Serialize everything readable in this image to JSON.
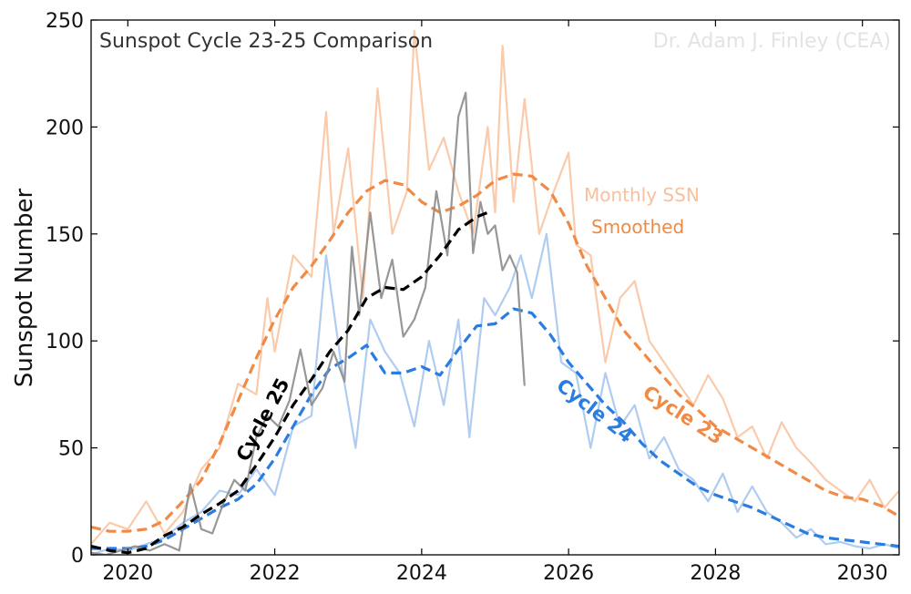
{
  "chart_data": {
    "type": "line",
    "title": "Sunspot Cycle 23-25 Comparison",
    "credit": "Dr. Adam J. Finley (CEA)",
    "xlabel": "",
    "ylabel": "Sunspot Number",
    "xlim": [
      2019.5,
      2030.5
    ],
    "ylim": [
      0,
      250
    ],
    "xticks": [
      2020,
      2022,
      2024,
      2026,
      2028,
      2030
    ],
    "yticks": [
      0,
      50,
      100,
      150,
      200,
      250
    ],
    "grid": false,
    "legend": {
      "monthly_label": "Monthly SSN",
      "smoothed_label": "Smoothed"
    },
    "series": [
      {
        "name": "Cycle 23 Monthly SSN",
        "cycle": 23,
        "kind": "monthly",
        "color": "#f9c4a2",
        "x": [
          2019.5,
          2019.75,
          2020.0,
          2020.25,
          2020.5,
          2020.75,
          2021.0,
          2021.25,
          2021.5,
          2021.75,
          2021.9,
          2022.0,
          2022.25,
          2022.5,
          2022.7,
          2022.8,
          2023.0,
          2023.2,
          2023.4,
          2023.6,
          2023.8,
          2023.9,
          2024.1,
          2024.3,
          2024.5,
          2024.7,
          2024.9,
          2025.0,
          2025.1,
          2025.25,
          2025.4,
          2025.6,
          2025.8,
          2026.0,
          2026.1,
          2026.3,
          2026.5,
          2026.7,
          2026.9,
          2027.1,
          2027.3,
          2027.5,
          2027.7,
          2027.9,
          2028.1,
          2028.3,
          2028.5,
          2028.7,
          2028.9,
          2029.1,
          2029.3,
          2029.5,
          2029.7,
          2029.9,
          2030.1,
          2030.3,
          2030.5
        ],
        "values": [
          5,
          15,
          12,
          25,
          10,
          20,
          40,
          50,
          80,
          75,
          120,
          95,
          140,
          130,
          207,
          150,
          190,
          120,
          218,
          150,
          170,
          245,
          180,
          195,
          170,
          150,
          200,
          160,
          238,
          165,
          213,
          150,
          170,
          188,
          145,
          140,
          90,
          120,
          128,
          100,
          90,
          80,
          70,
          84,
          73,
          55,
          60,
          45,
          62,
          50,
          43,
          35,
          30,
          25,
          35,
          22,
          30
        ]
      },
      {
        "name": "Cycle 23 Smoothed",
        "cycle": 23,
        "kind": "smoothed",
        "color": "#f08a45",
        "x": [
          2019.5,
          2019.75,
          2020.0,
          2020.25,
          2020.5,
          2020.75,
          2021.0,
          2021.25,
          2021.5,
          2021.75,
          2022.0,
          2022.25,
          2022.5,
          2022.75,
          2023.0,
          2023.25,
          2023.5,
          2023.75,
          2024.0,
          2024.25,
          2024.5,
          2024.75,
          2025.0,
          2025.25,
          2025.5,
          2025.75,
          2026.0,
          2026.25,
          2026.5,
          2026.75,
          2027.0,
          2027.25,
          2027.5,
          2027.75,
          2028.0,
          2028.25,
          2028.5,
          2028.75,
          2029.0,
          2029.25,
          2029.5,
          2029.75,
          2030.0,
          2030.25,
          2030.5
        ],
        "values": [
          13,
          11,
          11,
          12,
          16,
          25,
          35,
          52,
          72,
          92,
          110,
          125,
          135,
          147,
          160,
          170,
          175,
          173,
          165,
          160,
          163,
          168,
          175,
          178,
          177,
          170,
          155,
          135,
          120,
          105,
          95,
          85,
          75,
          68,
          60,
          55,
          50,
          45,
          40,
          35,
          30,
          27,
          26,
          23,
          18
        ]
      },
      {
        "name": "Cycle 24 Monthly SSN",
        "cycle": 24,
        "kind": "monthly",
        "color": "#a7c7ee",
        "x": [
          2019.5,
          2019.75,
          2020.0,
          2020.25,
          2020.5,
          2020.75,
          2021.0,
          2021.25,
          2021.5,
          2021.75,
          2022.0,
          2022.25,
          2022.5,
          2022.7,
          2022.9,
          2023.1,
          2023.3,
          2023.5,
          2023.7,
          2023.9,
          2024.1,
          2024.3,
          2024.5,
          2024.65,
          2024.85,
          2025.0,
          2025.2,
          2025.35,
          2025.5,
          2025.7,
          2025.9,
          2026.1,
          2026.3,
          2026.5,
          2026.7,
          2026.9,
          2027.1,
          2027.3,
          2027.5,
          2027.7,
          2027.9,
          2028.1,
          2028.3,
          2028.5,
          2028.7,
          2028.9,
          2029.1,
          2029.3,
          2029.5,
          2029.7,
          2029.9,
          2030.1,
          2030.3,
          2030.5
        ],
        "values": [
          0,
          3,
          2,
          5,
          8,
          15,
          20,
          30,
          28,
          40,
          28,
          60,
          65,
          140,
          90,
          50,
          110,
          95,
          85,
          60,
          100,
          70,
          110,
          55,
          120,
          112,
          125,
          140,
          120,
          150,
          90,
          85,
          50,
          85,
          60,
          70,
          45,
          55,
          40,
          35,
          25,
          38,
          20,
          32,
          20,
          15,
          8,
          12,
          5,
          6,
          4,
          3,
          5,
          3
        ]
      },
      {
        "name": "Cycle 24 Smoothed",
        "cycle": 24,
        "kind": "smoothed",
        "color": "#2b7ce0",
        "x": [
          2019.5,
          2019.75,
          2020.0,
          2020.25,
          2020.5,
          2020.75,
          2021.0,
          2021.25,
          2021.5,
          2021.75,
          2022.0,
          2022.25,
          2022.5,
          2022.75,
          2023.0,
          2023.25,
          2023.5,
          2023.75,
          2024.0,
          2024.25,
          2024.5,
          2024.75,
          2025.0,
          2025.25,
          2025.5,
          2025.75,
          2026.0,
          2026.25,
          2026.5,
          2026.75,
          2027.0,
          2027.25,
          2027.5,
          2027.75,
          2028.0,
          2028.25,
          2028.5,
          2028.75,
          2029.0,
          2029.25,
          2029.5,
          2029.75,
          2030.0,
          2030.25,
          2030.5
        ],
        "values": [
          3,
          3,
          3,
          4,
          7,
          12,
          17,
          22,
          26,
          33,
          45,
          60,
          75,
          87,
          92,
          98,
          85,
          85,
          88,
          84,
          96,
          107,
          108,
          115,
          113,
          103,
          90,
          80,
          70,
          62,
          52,
          44,
          38,
          32,
          28,
          25,
          22,
          18,
          14,
          10,
          8,
          7,
          6,
          5,
          4
        ]
      },
      {
        "name": "Cycle 25 Monthly SSN",
        "cycle": 25,
        "kind": "monthly",
        "color": "#8c8c8c",
        "x": [
          2019.5,
          2019.7,
          2019.9,
          2020.1,
          2020.3,
          2020.5,
          2020.7,
          2020.85,
          2021.0,
          2021.15,
          2021.3,
          2021.45,
          2021.6,
          2021.75,
          2021.9,
          2022.05,
          2022.2,
          2022.35,
          2022.5,
          2022.65,
          2022.8,
          2022.95,
          2023.05,
          2023.15,
          2023.3,
          2023.45,
          2023.6,
          2023.75,
          2023.9,
          2024.05,
          2024.2,
          2024.35,
          2024.5,
          2024.6,
          2024.7,
          2024.8,
          2024.9,
          2025.0,
          2025.1,
          2025.2,
          2025.3,
          2025.4
        ],
        "values": [
          1,
          0,
          2,
          4,
          2,
          5,
          2,
          33,
          12,
          10,
          24,
          35,
          30,
          55,
          65,
          60,
          72,
          96,
          70,
          78,
          95,
          81,
          144,
          112,
          160,
          120,
          138,
          102,
          110,
          125,
          170,
          140,
          205,
          216,
          141,
          165,
          150,
          154,
          133,
          140,
          132,
          79
        ]
      },
      {
        "name": "Cycle 25 Smoothed",
        "cycle": 25,
        "kind": "smoothed",
        "color": "#000000",
        "x": [
          2019.5,
          2019.75,
          2020.0,
          2020.25,
          2020.5,
          2020.75,
          2021.0,
          2021.25,
          2021.5,
          2021.75,
          2022.0,
          2022.25,
          2022.5,
          2022.75,
          2023.0,
          2023.25,
          2023.5,
          2023.75,
          2024.0,
          2024.25,
          2024.5,
          2024.75,
          2024.9
        ],
        "values": [
          4,
          2,
          1,
          3,
          9,
          13,
          19,
          24,
          30,
          42,
          55,
          70,
          82,
          95,
          105,
          120,
          125,
          124,
          130,
          140,
          152,
          158,
          160
        ]
      }
    ],
    "annotations": [
      {
        "text": "Cycle 25",
        "cycle": 25,
        "x": 2021.85,
        "y": 63,
        "angle_deg": -62
      },
      {
        "text": "Cycle 24",
        "cycle": 24,
        "x": 2026.35,
        "y": 67,
        "angle_deg": 38
      },
      {
        "text": "Cycle 23",
        "cycle": 23,
        "x": 2027.55,
        "y": 65,
        "angle_deg": 33
      }
    ]
  }
}
